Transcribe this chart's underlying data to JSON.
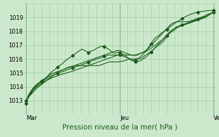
{
  "background_color": "#cce8cc",
  "plot_bg_color": "#cce8cc",
  "grid_color": "#99cc99",
  "line_color": "#1a5c1a",
  "marker_color": "#1a5c1a",
  "xlabel": "Pression niveau de la mer( hPa )",
  "xlabel_fontsize": 7.5,
  "yticks": [
    1013,
    1014,
    1015,
    1016,
    1017,
    1018,
    1019
  ],
  "ytick_fontsize": 6,
  "xtick_labels": [
    "Mar",
    "Jeu",
    "Ven"
  ],
  "xtick_positions": [
    0,
    48,
    96
  ],
  "xtick_fontsize": 6,
  "ylim": [
    1012.4,
    1019.7
  ],
  "xlim": [
    -1,
    97
  ],
  "total_points": 97,
  "series": [
    [
      1012.8,
      1013.3,
      1013.55,
      1013.75,
      1013.9,
      1014.05,
      1014.15,
      1014.25,
      1014.4,
      1014.5,
      1014.6,
      1014.75,
      1014.9,
      1015.05,
      1015.15,
      1015.25,
      1015.4,
      1015.5,
      1015.6,
      1015.7,
      1015.85,
      1015.95,
      1016.05,
      1016.15,
      1016.25,
      1016.35,
      1016.45,
      1016.55,
      1016.65,
      1016.7,
      1016.6,
      1016.55,
      1016.45,
      1016.55,
      1016.6,
      1016.65,
      1016.75,
      1016.82,
      1016.88,
      1016.92,
      1016.88,
      1016.8,
      1016.72,
      1016.62,
      1016.5,
      1016.42,
      1016.42,
      1016.5,
      1016.45,
      1016.38,
      1016.3,
      1016.22,
      1016.1,
      1016.0,
      1015.9,
      1015.9,
      1015.9,
      1016.0,
      1016.1,
      1016.2,
      1016.35,
      1016.5,
      1016.7,
      1016.9,
      1017.1,
      1017.3,
      1017.5,
      1017.6,
      1017.7,
      1017.82,
      1017.92,
      1018.02,
      1018.12,
      1018.22,
      1018.35,
      1018.45,
      1018.55,
      1018.65,
      1018.75,
      1018.82,
      1018.92,
      1019.0,
      1019.08,
      1019.14,
      1019.2,
      1019.26,
      1019.3,
      1019.34,
      1019.38,
      1019.4,
      1019.42,
      1019.44,
      1019.46,
      1019.48,
      1019.49,
      1019.5,
      1019.5
    ],
    [
      1013.0,
      1013.15,
      1013.35,
      1013.5,
      1013.65,
      1013.8,
      1013.95,
      1014.05,
      1014.15,
      1014.3,
      1014.4,
      1014.5,
      1014.6,
      1014.7,
      1014.8,
      1014.9,
      1015.0,
      1015.1,
      1015.15,
      1015.22,
      1015.28,
      1015.35,
      1015.42,
      1015.45,
      1015.48,
      1015.5,
      1015.52,
      1015.52,
      1015.52,
      1015.52,
      1015.52,
      1015.52,
      1015.52,
      1015.52,
      1015.52,
      1015.52,
      1015.52,
      1015.52,
      1015.55,
      1015.6,
      1015.65,
      1015.7,
      1015.75,
      1015.78,
      1015.78,
      1015.78,
      1015.78,
      1015.78,
      1015.8,
      1015.82,
      1015.85,
      1015.9,
      1015.95,
      1016.0,
      1016.0,
      1016.0,
      1016.0,
      1016.0,
      1016.0,
      1016.05,
      1016.15,
      1016.25,
      1016.35,
      1016.45,
      1016.55,
      1016.65,
      1016.78,
      1016.9,
      1017.0,
      1017.1,
      1017.22,
      1017.4,
      1017.6,
      1017.78,
      1017.9,
      1018.0,
      1018.1,
      1018.2,
      1018.3,
      1018.35,
      1018.4,
      1018.45,
      1018.5,
      1018.55,
      1018.6,
      1018.65,
      1018.7,
      1018.75,
      1018.8,
      1018.85,
      1018.9,
      1018.95,
      1019.0,
      1019.1,
      1019.2,
      1019.3,
      1019.4
    ],
    [
      1013.0,
      1013.2,
      1013.45,
      1013.65,
      1013.85,
      1014.0,
      1014.12,
      1014.22,
      1014.32,
      1014.42,
      1014.52,
      1014.62,
      1014.72,
      1014.78,
      1014.85,
      1014.9,
      1014.95,
      1015.0,
      1015.05,
      1015.1,
      1015.15,
      1015.2,
      1015.25,
      1015.3,
      1015.35,
      1015.4,
      1015.45,
      1015.5,
      1015.55,
      1015.6,
      1015.65,
      1015.7,
      1015.75,
      1015.82,
      1015.88,
      1015.92,
      1015.98,
      1016.02,
      1016.08,
      1016.12,
      1016.18,
      1016.22,
      1016.28,
      1016.28,
      1016.28,
      1016.28,
      1016.28,
      1016.28,
      1016.28,
      1016.22,
      1016.18,
      1016.12,
      1016.08,
      1016.0,
      1015.9,
      1015.85,
      1015.8,
      1015.8,
      1015.85,
      1015.9,
      1016.0,
      1016.1,
      1016.2,
      1016.35,
      1016.5,
      1016.65,
      1016.8,
      1016.95,
      1017.1,
      1017.25,
      1017.4,
      1017.55,
      1017.7,
      1017.85,
      1018.0,
      1018.1,
      1018.2,
      1018.3,
      1018.35,
      1018.4,
      1018.45,
      1018.5,
      1018.55,
      1018.6,
      1018.65,
      1018.7,
      1018.75,
      1018.8,
      1018.85,
      1018.9,
      1018.95,
      1019.0,
      1019.1,
      1019.2,
      1019.25,
      1019.3,
      1019.35
    ],
    [
      1013.0,
      1013.15,
      1013.38,
      1013.58,
      1013.78,
      1013.92,
      1014.02,
      1014.1,
      1014.18,
      1014.28,
      1014.38,
      1014.48,
      1014.55,
      1014.62,
      1014.68,
      1014.72,
      1014.78,
      1014.82,
      1014.88,
      1014.92,
      1014.95,
      1015.0,
      1015.04,
      1015.08,
      1015.12,
      1015.18,
      1015.22,
      1015.28,
      1015.32,
      1015.38,
      1015.42,
      1015.48,
      1015.52,
      1015.58,
      1015.62,
      1015.68,
      1015.72,
      1015.78,
      1015.82,
      1015.88,
      1015.92,
      1015.98,
      1016.02,
      1016.08,
      1016.12,
      1016.18,
      1016.22,
      1016.28,
      1016.28,
      1016.28,
      1016.28,
      1016.28,
      1016.28,
      1016.28,
      1016.28,
      1016.28,
      1016.28,
      1016.32,
      1016.38,
      1016.42,
      1016.48,
      1016.52,
      1016.58,
      1016.68,
      1016.78,
      1016.88,
      1016.98,
      1017.1,
      1017.2,
      1017.3,
      1017.4,
      1017.55,
      1017.7,
      1017.85,
      1018.0,
      1018.1,
      1018.2,
      1018.3,
      1018.35,
      1018.4,
      1018.45,
      1018.5,
      1018.55,
      1018.6,
      1018.65,
      1018.7,
      1018.75,
      1018.8,
      1018.85,
      1018.9,
      1018.95,
      1019.0,
      1019.1,
      1019.2,
      1019.25,
      1019.3,
      1019.35
    ],
    [
      1013.0,
      1013.2,
      1013.5,
      1013.75,
      1013.95,
      1014.1,
      1014.22,
      1014.32,
      1014.42,
      1014.52,
      1014.62,
      1014.72,
      1014.82,
      1014.92,
      1014.98,
      1015.02,
      1015.08,
      1015.12,
      1015.18,
      1015.22,
      1015.28,
      1015.32,
      1015.38,
      1015.42,
      1015.48,
      1015.52,
      1015.58,
      1015.62,
      1015.68,
      1015.72,
      1015.78,
      1015.82,
      1015.88,
      1015.92,
      1015.98,
      1016.02,
      1016.08,
      1016.12,
      1016.18,
      1016.22,
      1016.28,
      1016.32,
      1016.38,
      1016.42,
      1016.48,
      1016.52,
      1016.58,
      1016.62,
      1016.58,
      1016.55,
      1016.48,
      1016.42,
      1016.38,
      1016.32,
      1016.28,
      1016.25,
      1016.25,
      1016.28,
      1016.35,
      1016.42,
      1016.48,
      1016.58,
      1016.68,
      1016.82,
      1016.98,
      1017.12,
      1017.28,
      1017.42,
      1017.58,
      1017.72,
      1017.88,
      1018.02,
      1018.18,
      1018.32,
      1018.48,
      1018.58,
      1018.62,
      1018.68,
      1018.68,
      1018.68,
      1018.68,
      1018.68,
      1018.68,
      1018.68,
      1018.72,
      1018.78,
      1018.82,
      1018.88,
      1018.92,
      1018.98,
      1019.02,
      1019.08,
      1019.12,
      1019.18,
      1019.22,
      1019.28,
      1019.38
    ]
  ],
  "marker_series": [
    0,
    2
  ],
  "marker_interval": 8
}
